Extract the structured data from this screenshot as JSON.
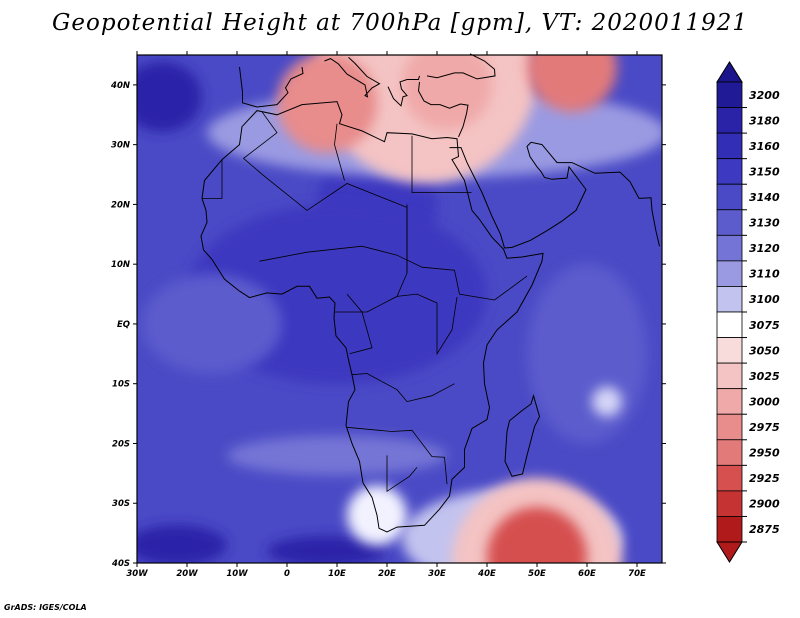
{
  "title": "Geopotential Height at 700hPa [gpm], VT: 2020011921",
  "credit": "GrADS: IGES/COLA",
  "map": {
    "region": "Africa",
    "lon_range": [
      -30,
      75
    ],
    "lat_range": [
      -40,
      45
    ],
    "lon_ticks": [
      {
        "value": -30,
        "label": "30W"
      },
      {
        "value": -20,
        "label": "20W"
      },
      {
        "value": -10,
        "label": "10W"
      },
      {
        "value": 0,
        "label": "0"
      },
      {
        "value": 10,
        "label": "10E"
      },
      {
        "value": 20,
        "label": "20E"
      },
      {
        "value": 30,
        "label": "30E"
      },
      {
        "value": 40,
        "label": "40E"
      },
      {
        "value": 50,
        "label": "50E"
      },
      {
        "value": 60,
        "label": "60E"
      },
      {
        "value": 70,
        "label": "70E"
      }
    ],
    "lat_ticks": [
      {
        "value": 40,
        "label": "40N"
      },
      {
        "value": 30,
        "label": "30N"
      },
      {
        "value": 20,
        "label": "20N"
      },
      {
        "value": 10,
        "label": "10N"
      },
      {
        "value": 0,
        "label": "EQ"
      },
      {
        "value": -10,
        "label": "10S"
      },
      {
        "value": -20,
        "label": "20S"
      },
      {
        "value": -30,
        "label": "30S"
      },
      {
        "value": -40,
        "label": "40S"
      }
    ],
    "background_color": "#4a4ac6",
    "features": [
      {
        "name": "north-high-ridge",
        "lon": 28,
        "lat": 42,
        "radius_deg": 22,
        "height_gpm": 3025,
        "color": "#f4c3c3"
      },
      {
        "name": "mediterranean-low",
        "lon": 8,
        "lat": 37,
        "radius_deg": 10,
        "height_gpm": 3000,
        "color": "#e88c8c"
      },
      {
        "name": "turkey-low",
        "lon": 32,
        "lat": 40,
        "radius_deg": 9,
        "height_gpm": 3025,
        "color": "#f0a9a9"
      },
      {
        "name": "caspian-low",
        "lon": 57,
        "lat": 43,
        "radius_deg": 9,
        "height_gpm": 2975,
        "color": "#e27a7a"
      },
      {
        "name": "southern-trough",
        "lon": 50,
        "lat": -40,
        "radius_deg": 17,
        "height_gpm": 3050,
        "color": "#f4c3c3"
      },
      {
        "name": "southern-trough-core",
        "lon": 50,
        "lat": -39,
        "radius_deg": 10,
        "height_gpm": 2950,
        "color": "#d65050"
      },
      {
        "name": "south-africa-cutoff",
        "lon": 18,
        "lat": -32,
        "radius_deg": 6,
        "height_gpm": 3075,
        "color": "#f2f2ff"
      },
      {
        "name": "madagascar-east-low",
        "lon": 64,
        "lat": -13,
        "radius_deg": 3,
        "height_gpm": 3100,
        "color": "#d6d6f8"
      }
    ]
  },
  "colorbar": {
    "levels": [
      3200,
      3180,
      3160,
      3150,
      3140,
      3130,
      3120,
      3110,
      3100,
      3075,
      3050,
      3025,
      3000,
      2975,
      2950,
      2925,
      2900,
      2875
    ],
    "top_color": "#1c148c",
    "bottom_color": "#b01a1a",
    "colors": [
      "#201a96",
      "#2a23a8",
      "#332eb6",
      "#3d39c0",
      "#4a4ac6",
      "#5c5ccd",
      "#7474d6",
      "#9a9ae2",
      "#c3c3ef",
      "#ffffff",
      "#f8dcdc",
      "#f4c3c3",
      "#f0a9a9",
      "#e88c8c",
      "#e27a7a",
      "#d65050",
      "#c53333",
      "#b01a1a"
    ]
  }
}
